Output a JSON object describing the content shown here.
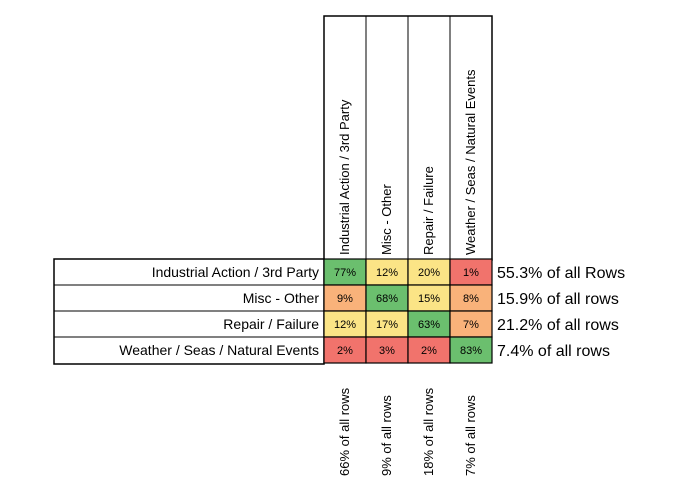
{
  "chart_data": {
    "type": "heatmap",
    "title": "",
    "row_labels": [
      "Industrial Action / 3rd Party",
      "Misc - Other",
      "Repair / Failure",
      "Weather / Seas / Natural Events"
    ],
    "col_labels": [
      "Industrial Action / 3rd Party",
      "Misc - Other",
      "Repair / Failure",
      "Weather / Seas / Natural Events"
    ],
    "values": [
      [
        77,
        12,
        20,
        1
      ],
      [
        9,
        68,
        15,
        8
      ],
      [
        12,
        17,
        63,
        7
      ],
      [
        2,
        3,
        2,
        83
      ]
    ],
    "cell_labels": [
      [
        "77%",
        "12%",
        "20%",
        "1%"
      ],
      [
        "9%",
        "68%",
        "15%",
        "8%"
      ],
      [
        "12%",
        "17%",
        "63%",
        "7%"
      ],
      [
        "2%",
        "3%",
        "2%",
        "83%"
      ]
    ],
    "cell_colors": [
      [
        "#6bbf6e",
        "#fbe486",
        "#fbe486",
        "#f1736c"
      ],
      [
        "#f9b27a",
        "#6bbf6e",
        "#fbe486",
        "#f9b27a"
      ],
      [
        "#fbe486",
        "#fbe486",
        "#6bbf6e",
        "#f9b27a"
      ],
      [
        "#f1736c",
        "#f1736c",
        "#f1736c",
        "#6bbf6e"
      ]
    ],
    "row_shares": [
      "55.3% of all Rows",
      "15.9% of all rows",
      "21.2% of all rows",
      "7.4% of all rows"
    ],
    "col_shares": [
      "66% of all rows",
      "9% of all rows",
      "18% of all rows",
      "7% of all rows"
    ]
  }
}
